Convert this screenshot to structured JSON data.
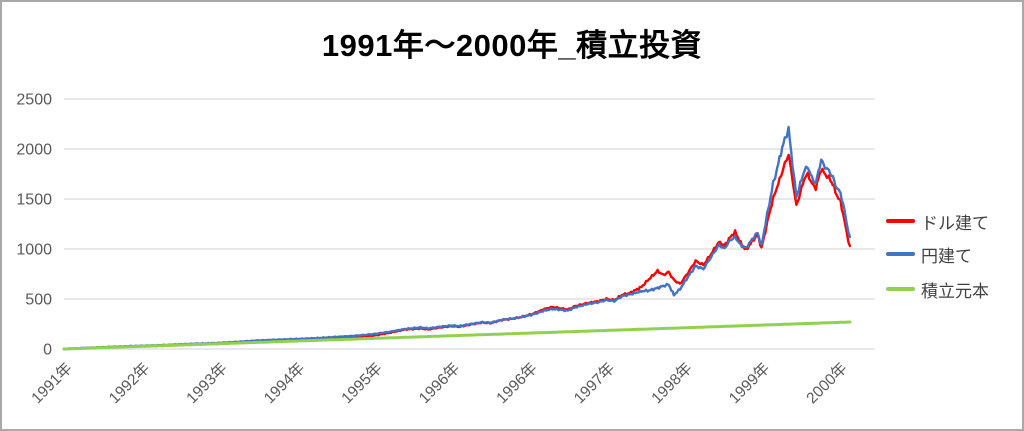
{
  "chart_data": {
    "type": "line",
    "title": "1991年～2000年_積立投資",
    "x_axis": {
      "labels": [
        "1991年",
        "1992年",
        "1993年",
        "1994年",
        "1995年",
        "1996年",
        "1996年",
        "1997年",
        "1998年",
        "1999年",
        "2000年"
      ],
      "note": "daily category axis; label 1996 appears twice"
    },
    "y_axis": {
      "min": 0,
      "max": 2500,
      "ticks": [
        0,
        500,
        1000,
        1500,
        2000,
        2500
      ]
    },
    "legend": {
      "position": "right",
      "items": [
        "ドル建て",
        "円建て",
        "積立元本"
      ]
    },
    "grid": "horizontal",
    "colors": {
      "axis_text": "#595959",
      "grid": "#d9d9d9",
      "title": "#000000",
      "legend_text": "#404040",
      "frame_border": "#a9a9a9"
    },
    "series": [
      {
        "key": "dollar",
        "name": "ドル建て",
        "color": "#ff0000",
        "width": 2.4,
        "jitter": 13,
        "points": [
          [
            0,
            0
          ],
          [
            0.25,
            8
          ],
          [
            0.5,
            15
          ],
          [
            0.75,
            22
          ],
          [
            1,
            27
          ],
          [
            1.25,
            33
          ],
          [
            1.5,
            40
          ],
          [
            1.75,
            46
          ],
          [
            2,
            52
          ],
          [
            2.25,
            62
          ],
          [
            2.5,
            75
          ],
          [
            2.75,
            82
          ],
          [
            3,
            88
          ],
          [
            3.25,
            95
          ],
          [
            3.5,
            105
          ],
          [
            3.75,
            118
          ],
          [
            3.9,
            130
          ],
          [
            4,
            135
          ],
          [
            4.2,
            162
          ],
          [
            4.4,
            195
          ],
          [
            4.6,
            205
          ],
          [
            4.7,
            196
          ],
          [
            4.85,
            215
          ],
          [
            5,
            228
          ],
          [
            5.1,
            222
          ],
          [
            5.25,
            245
          ],
          [
            5.4,
            265
          ],
          [
            5.5,
            258
          ],
          [
            5.65,
            290
          ],
          [
            5.8,
            305
          ],
          [
            5.9,
            320
          ],
          [
            6.05,
            352
          ],
          [
            6.2,
            400
          ],
          [
            6.3,
            420
          ],
          [
            6.4,
            408
          ],
          [
            6.5,
            395
          ],
          [
            6.6,
            430
          ],
          [
            6.75,
            458
          ],
          [
            6.9,
            478
          ],
          [
            7,
            500
          ],
          [
            7.1,
            488
          ],
          [
            7.2,
            540
          ],
          [
            7.3,
            558
          ],
          [
            7.45,
            620
          ],
          [
            7.55,
            700
          ],
          [
            7.66,
            780
          ],
          [
            7.73,
            740
          ],
          [
            7.8,
            770
          ],
          [
            7.87,
            690
          ],
          [
            7.95,
            650
          ],
          [
            8.05,
            760
          ],
          [
            8.15,
            880
          ],
          [
            8.25,
            840
          ],
          [
            8.35,
            950
          ],
          [
            8.45,
            1070
          ],
          [
            8.52,
            1030
          ],
          [
            8.6,
            1120
          ],
          [
            8.66,
            1170
          ],
          [
            8.73,
            1060
          ],
          [
            8.8,
            990
          ],
          [
            8.9,
            1100
          ],
          [
            8.95,
            1140
          ],
          [
            9,
            1010
          ],
          [
            9.05,
            1180
          ],
          [
            9.1,
            1350
          ],
          [
            9.15,
            1500
          ],
          [
            9.2,
            1620
          ],
          [
            9.25,
            1730
          ],
          [
            9.3,
            1850
          ],
          [
            9.35,
            1950
          ],
          [
            9.4,
            1700
          ],
          [
            9.45,
            1430
          ],
          [
            9.5,
            1560
          ],
          [
            9.55,
            1700
          ],
          [
            9.6,
            1750
          ],
          [
            9.65,
            1650
          ],
          [
            9.7,
            1610
          ],
          [
            9.77,
            1800
          ],
          [
            9.82,
            1750
          ],
          [
            9.87,
            1710
          ],
          [
            9.92,
            1650
          ],
          [
            9.97,
            1540
          ],
          [
            10.02,
            1470
          ],
          [
            10.07,
            1290
          ],
          [
            10.1,
            1150
          ],
          [
            10.14,
            1030
          ]
        ]
      },
      {
        "key": "yen",
        "name": "円建て",
        "color": "#4472c4",
        "width": 2.4,
        "jitter": 13,
        "points": [
          [
            0,
            0
          ],
          [
            0.25,
            10
          ],
          [
            0.5,
            18
          ],
          [
            0.75,
            26
          ],
          [
            1,
            32
          ],
          [
            1.25,
            39
          ],
          [
            1.5,
            47
          ],
          [
            1.75,
            54
          ],
          [
            2,
            61
          ],
          [
            2.25,
            72
          ],
          [
            2.5,
            85
          ],
          [
            2.75,
            93
          ],
          [
            3,
            100
          ],
          [
            3.25,
            108
          ],
          [
            3.5,
            120
          ],
          [
            3.75,
            132
          ],
          [
            3.9,
            142
          ],
          [
            4,
            150
          ],
          [
            4.2,
            172
          ],
          [
            4.4,
            200
          ],
          [
            4.6,
            215
          ],
          [
            4.7,
            206
          ],
          [
            4.85,
            222
          ],
          [
            5,
            235
          ],
          [
            5.1,
            229
          ],
          [
            5.25,
            250
          ],
          [
            5.4,
            268
          ],
          [
            5.5,
            262
          ],
          [
            5.65,
            292
          ],
          [
            5.8,
            306
          ],
          [
            5.9,
            318
          ],
          [
            6.05,
            345
          ],
          [
            6.2,
            385
          ],
          [
            6.3,
            400
          ],
          [
            6.4,
            393
          ],
          [
            6.5,
            383
          ],
          [
            6.6,
            418
          ],
          [
            6.75,
            448
          ],
          [
            6.9,
            468
          ],
          [
            7,
            490
          ],
          [
            7.1,
            478
          ],
          [
            7.2,
            528
          ],
          [
            7.3,
            545
          ],
          [
            7.45,
            578
          ],
          [
            7.55,
            585
          ],
          [
            7.66,
            610
          ],
          [
            7.73,
            630
          ],
          [
            7.8,
            645
          ],
          [
            7.87,
            540
          ],
          [
            7.95,
            600
          ],
          [
            8.05,
            720
          ],
          [
            8.15,
            830
          ],
          [
            8.25,
            800
          ],
          [
            8.35,
            920
          ],
          [
            8.45,
            1040
          ],
          [
            8.52,
            1005
          ],
          [
            8.6,
            1090
          ],
          [
            8.66,
            1120
          ],
          [
            8.73,
            1040
          ],
          [
            8.8,
            1010
          ],
          [
            8.9,
            1120
          ],
          [
            8.95,
            1160
          ],
          [
            9,
            1030
          ],
          [
            9.05,
            1250
          ],
          [
            9.1,
            1450
          ],
          [
            9.15,
            1650
          ],
          [
            9.2,
            1800
          ],
          [
            9.25,
            1960
          ],
          [
            9.3,
            2100
          ],
          [
            9.35,
            2200
          ],
          [
            9.4,
            1850
          ],
          [
            9.45,
            1520
          ],
          [
            9.5,
            1650
          ],
          [
            9.55,
            1780
          ],
          [
            9.6,
            1820
          ],
          [
            9.65,
            1710
          ],
          [
            9.7,
            1660
          ],
          [
            9.77,
            1890
          ],
          [
            9.82,
            1820
          ],
          [
            9.87,
            1780
          ],
          [
            9.92,
            1720
          ],
          [
            9.97,
            1610
          ],
          [
            10.02,
            1560
          ],
          [
            10.07,
            1390
          ],
          [
            10.1,
            1250
          ],
          [
            10.14,
            1120
          ]
        ]
      },
      {
        "key": "principal",
        "name": "積立元本",
        "color": "#92d050",
        "width": 3,
        "jitter": 0,
        "points": [
          [
            0,
            0
          ],
          [
            2,
            53
          ],
          [
            4,
            106
          ],
          [
            6,
            159
          ],
          [
            8,
            212
          ],
          [
            10,
            266
          ],
          [
            10.14,
            270
          ]
        ]
      }
    ]
  }
}
